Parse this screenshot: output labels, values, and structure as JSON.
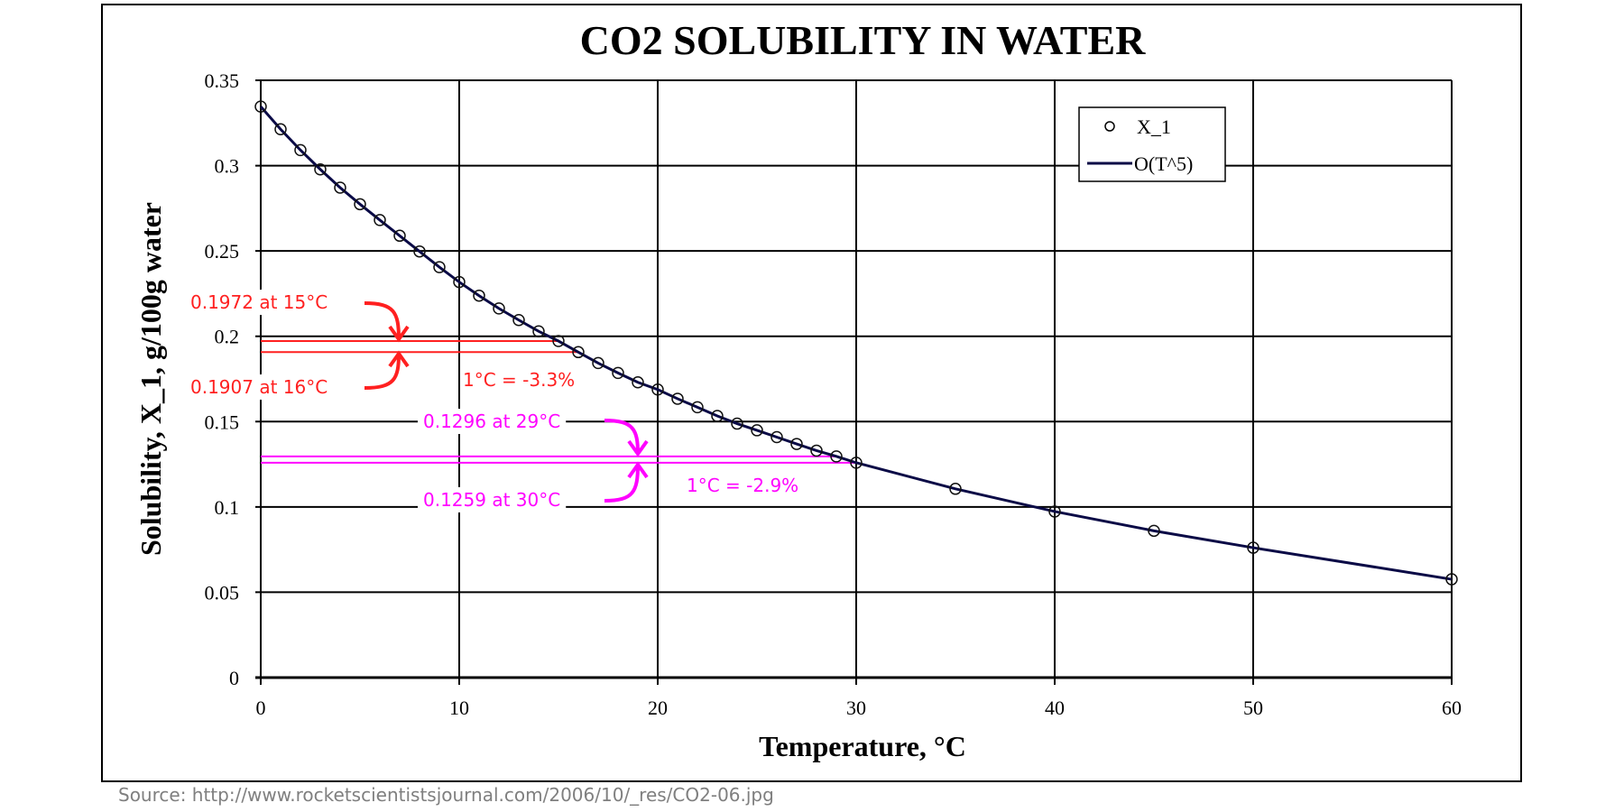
{
  "chart_data": {
    "type": "scatter",
    "title": "CO2 SOLUBILITY IN WATER",
    "xlabel": "Temperature, °C",
    "ylabel": "Solubility, X_1, g/100g water",
    "xlim": [
      0,
      60
    ],
    "ylim": [
      0,
      0.35
    ],
    "xticks": [
      "0",
      "10",
      "20",
      "30",
      "40",
      "50",
      "60"
    ],
    "yticks": [
      "0",
      "0.05",
      "0.1",
      "0.15",
      "0.2",
      "0.25",
      "0.3",
      "0.35"
    ],
    "grid": true,
    "legend_position": "top-right",
    "series": [
      {
        "name": "X_1",
        "kind": "markers",
        "marker": "open-circle",
        "x": [
          0,
          1,
          2,
          3,
          4,
          5,
          6,
          7,
          8,
          9,
          10,
          11,
          12,
          13,
          14,
          15,
          16,
          17,
          18,
          19,
          20,
          21,
          22,
          23,
          24,
          25,
          26,
          27,
          28,
          29,
          30,
          35,
          40,
          45,
          50,
          60
        ],
        "y": [
          0.3346,
          0.3213,
          0.3091,
          0.2978,
          0.2871,
          0.2774,
          0.2681,
          0.2589,
          0.2497,
          0.2405,
          0.2318,
          0.2238,
          0.2163,
          0.2095,
          0.2029,
          0.1972,
          0.1907,
          0.1843,
          0.1785,
          0.173,
          0.1688,
          0.1634,
          0.1584,
          0.1533,
          0.1488,
          0.1449,
          0.1409,
          0.1369,
          0.133,
          0.1296,
          0.1259,
          0.1106,
          0.0973,
          0.086,
          0.0761,
          0.0576
        ]
      },
      {
        "name": "O(T^5)",
        "kind": "line",
        "color": "#0a0a46"
      }
    ],
    "annotations": [
      {
        "text": "0.1972 at 15°C",
        "x": 15,
        "y": 0.1972,
        "color": "#ff2020"
      },
      {
        "text": "0.1907 at 16°C",
        "x": 16,
        "y": 0.1907,
        "color": "#ff2020"
      },
      {
        "text": "1°C = -3.3%",
        "color": "#ff2020"
      },
      {
        "text": "0.1296 at 29°C",
        "x": 29,
        "y": 0.1296,
        "color": "#ff00ff"
      },
      {
        "text": "0.1259 at 30°C",
        "x": 30,
        "y": 0.1259,
        "color": "#ff00ff"
      },
      {
        "text": "1°C = -2.9%",
        "color": "#ff00ff"
      }
    ]
  },
  "source": "Source:  http://www.rocketscientistsjournal.com/2006/10/_res/CO2-06.jpg"
}
